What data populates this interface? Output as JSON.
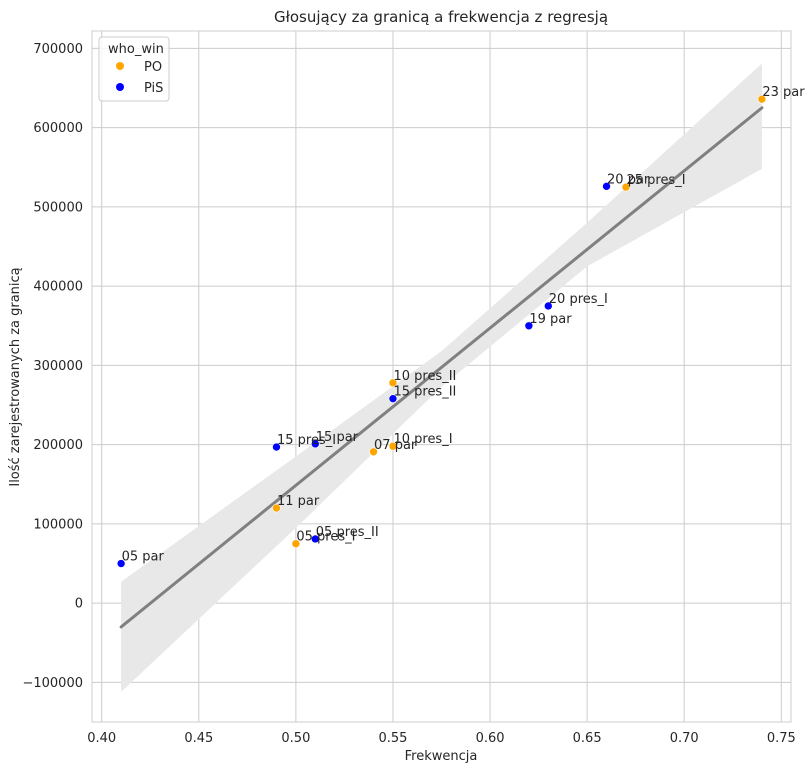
{
  "chart_data": {
    "type": "scatter",
    "title": "Głosujący za granicą a frekwencja z regresją",
    "xlabel": "Frekwencja",
    "ylabel": "Ilość zarejestrowanych za granicą",
    "xlim": [
      0.395,
      0.755
    ],
    "ylim": [
      -150000,
      722000
    ],
    "xticks": [
      0.4,
      0.45,
      0.5,
      0.55,
      0.6,
      0.65,
      0.7,
      0.75
    ],
    "xtick_labels": [
      "0.40",
      "0.45",
      "0.50",
      "0.55",
      "0.60",
      "0.65",
      "0.70",
      "0.75"
    ],
    "yticks": [
      -100000,
      0,
      100000,
      200000,
      300000,
      400000,
      500000,
      600000,
      700000
    ],
    "ytick_labels": [
      "−100000",
      "0",
      "100000",
      "200000",
      "300000",
      "400000",
      "500000",
      "600000",
      "700000"
    ],
    "grid": true,
    "legend": {
      "title": "who_win",
      "position": "top-left",
      "entries": [
        {
          "name": "PO",
          "color": "#ffa500"
        },
        {
          "name": "PiS",
          "color": "#0000ff"
        }
      ]
    },
    "colors": {
      "PO": "#ffa500",
      "PiS": "#0000ff"
    },
    "points": [
      {
        "label": "23 par",
        "x": 0.74,
        "y": 636000,
        "who_win": "PO"
      },
      {
        "label": "20 par",
        "x": 0.66,
        "y": 526000,
        "who_win": "PiS"
      },
      {
        "label": "25 pres_I",
        "x": 0.67,
        "y": 525000,
        "who_win": "PO"
      },
      {
        "label": "20 pres_I",
        "x": 0.63,
        "y": 375000,
        "who_win": "PiS"
      },
      {
        "label": "19 par",
        "x": 0.62,
        "y": 350000,
        "who_win": "PiS"
      },
      {
        "label": "10 pres_II",
        "x": 0.55,
        "y": 278000,
        "who_win": "PO"
      },
      {
        "label": "15 pres_II",
        "x": 0.55,
        "y": 258000,
        "who_win": "PiS"
      },
      {
        "label": "10 pres_I",
        "x": 0.55,
        "y": 198000,
        "who_win": "PO"
      },
      {
        "label": "07 par",
        "x": 0.54,
        "y": 191000,
        "who_win": "PO"
      },
      {
        "label": "15 par",
        "x": 0.51,
        "y": 201000,
        "who_win": "PiS"
      },
      {
        "label": "15 pres_I",
        "x": 0.49,
        "y": 197000,
        "who_win": "PiS"
      },
      {
        "label": "11 par",
        "x": 0.49,
        "y": 120000,
        "who_win": "PO"
      },
      {
        "label": "05 pres_II",
        "x": 0.51,
        "y": 81000,
        "who_win": "PiS"
      },
      {
        "label": "05 pres_I",
        "x": 0.5,
        "y": 75000,
        "who_win": "PO"
      },
      {
        "label": "05 par",
        "x": 0.41,
        "y": 50000,
        "who_win": "PiS"
      }
    ],
    "regression": {
      "x": [
        0.41,
        0.74
      ],
      "y": [
        -30000,
        625000
      ],
      "ci_upper": [
        [
          0.41,
          27000
        ],
        [
          0.5,
          185000
        ],
        [
          0.575,
          318000
        ],
        [
          0.65,
          480000
        ],
        [
          0.74,
          681000
        ]
      ],
      "ci_lower": [
        [
          0.74,
          548000
        ],
        [
          0.65,
          425000
        ],
        [
          0.575,
          273000
        ],
        [
          0.5,
          95000
        ],
        [
          0.41,
          -112000
        ]
      ],
      "color": "#808080",
      "ci_color": "#e8e8e8"
    }
  }
}
